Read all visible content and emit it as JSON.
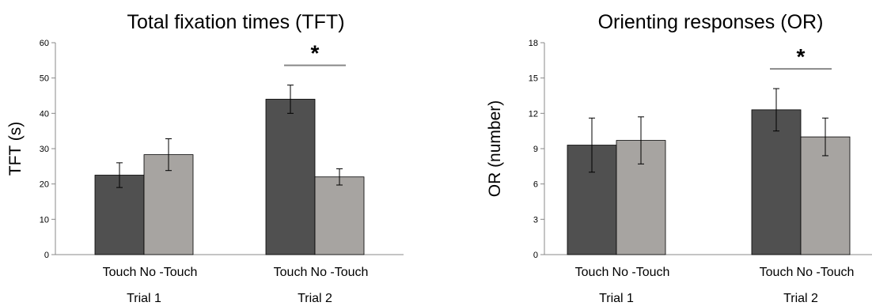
{
  "chart_data": [
    {
      "type": "bar",
      "title": "Total fixation times (TFT)",
      "ylabel": "TFT (s)",
      "xlabel": "",
      "ylim": [
        0,
        60
      ],
      "yticks": [
        0,
        10,
        20,
        30,
        40,
        50,
        60
      ],
      "groups": [
        "Trial 1",
        "Trial 2"
      ],
      "categories": [
        "Touch",
        "No -Touch"
      ],
      "series": [
        {
          "values": [
            22.5,
            44.0
          ],
          "error": [
            3.5,
            4.0
          ],
          "color": "#505050"
        },
        {
          "values": [
            28.3,
            22.0
          ],
          "error": [
            4.5,
            2.3
          ],
          "color": "#a7a4a1"
        }
      ],
      "significance": [
        {
          "group": 1,
          "label": "*"
        }
      ],
      "grid": false,
      "legend": "none"
    },
    {
      "type": "bar",
      "title": "Orienting responses (OR)",
      "ylabel": "OR (number)",
      "xlabel": "",
      "ylim": [
        0,
        18
      ],
      "yticks": [
        0,
        3,
        6,
        9,
        12,
        15,
        18
      ],
      "groups": [
        "Trial 1",
        "Trial 2"
      ],
      "categories": [
        "Touch",
        "No -Touch"
      ],
      "series": [
        {
          "values": [
            9.3,
            12.3
          ],
          "error": [
            2.3,
            1.8
          ],
          "color": "#505050"
        },
        {
          "values": [
            9.7,
            10.0
          ],
          "error": [
            2.0,
            1.6
          ],
          "color": "#a7a4a1"
        }
      ],
      "significance": [
        {
          "group": 1,
          "label": "*"
        }
      ],
      "grid": false,
      "legend": "none"
    }
  ]
}
